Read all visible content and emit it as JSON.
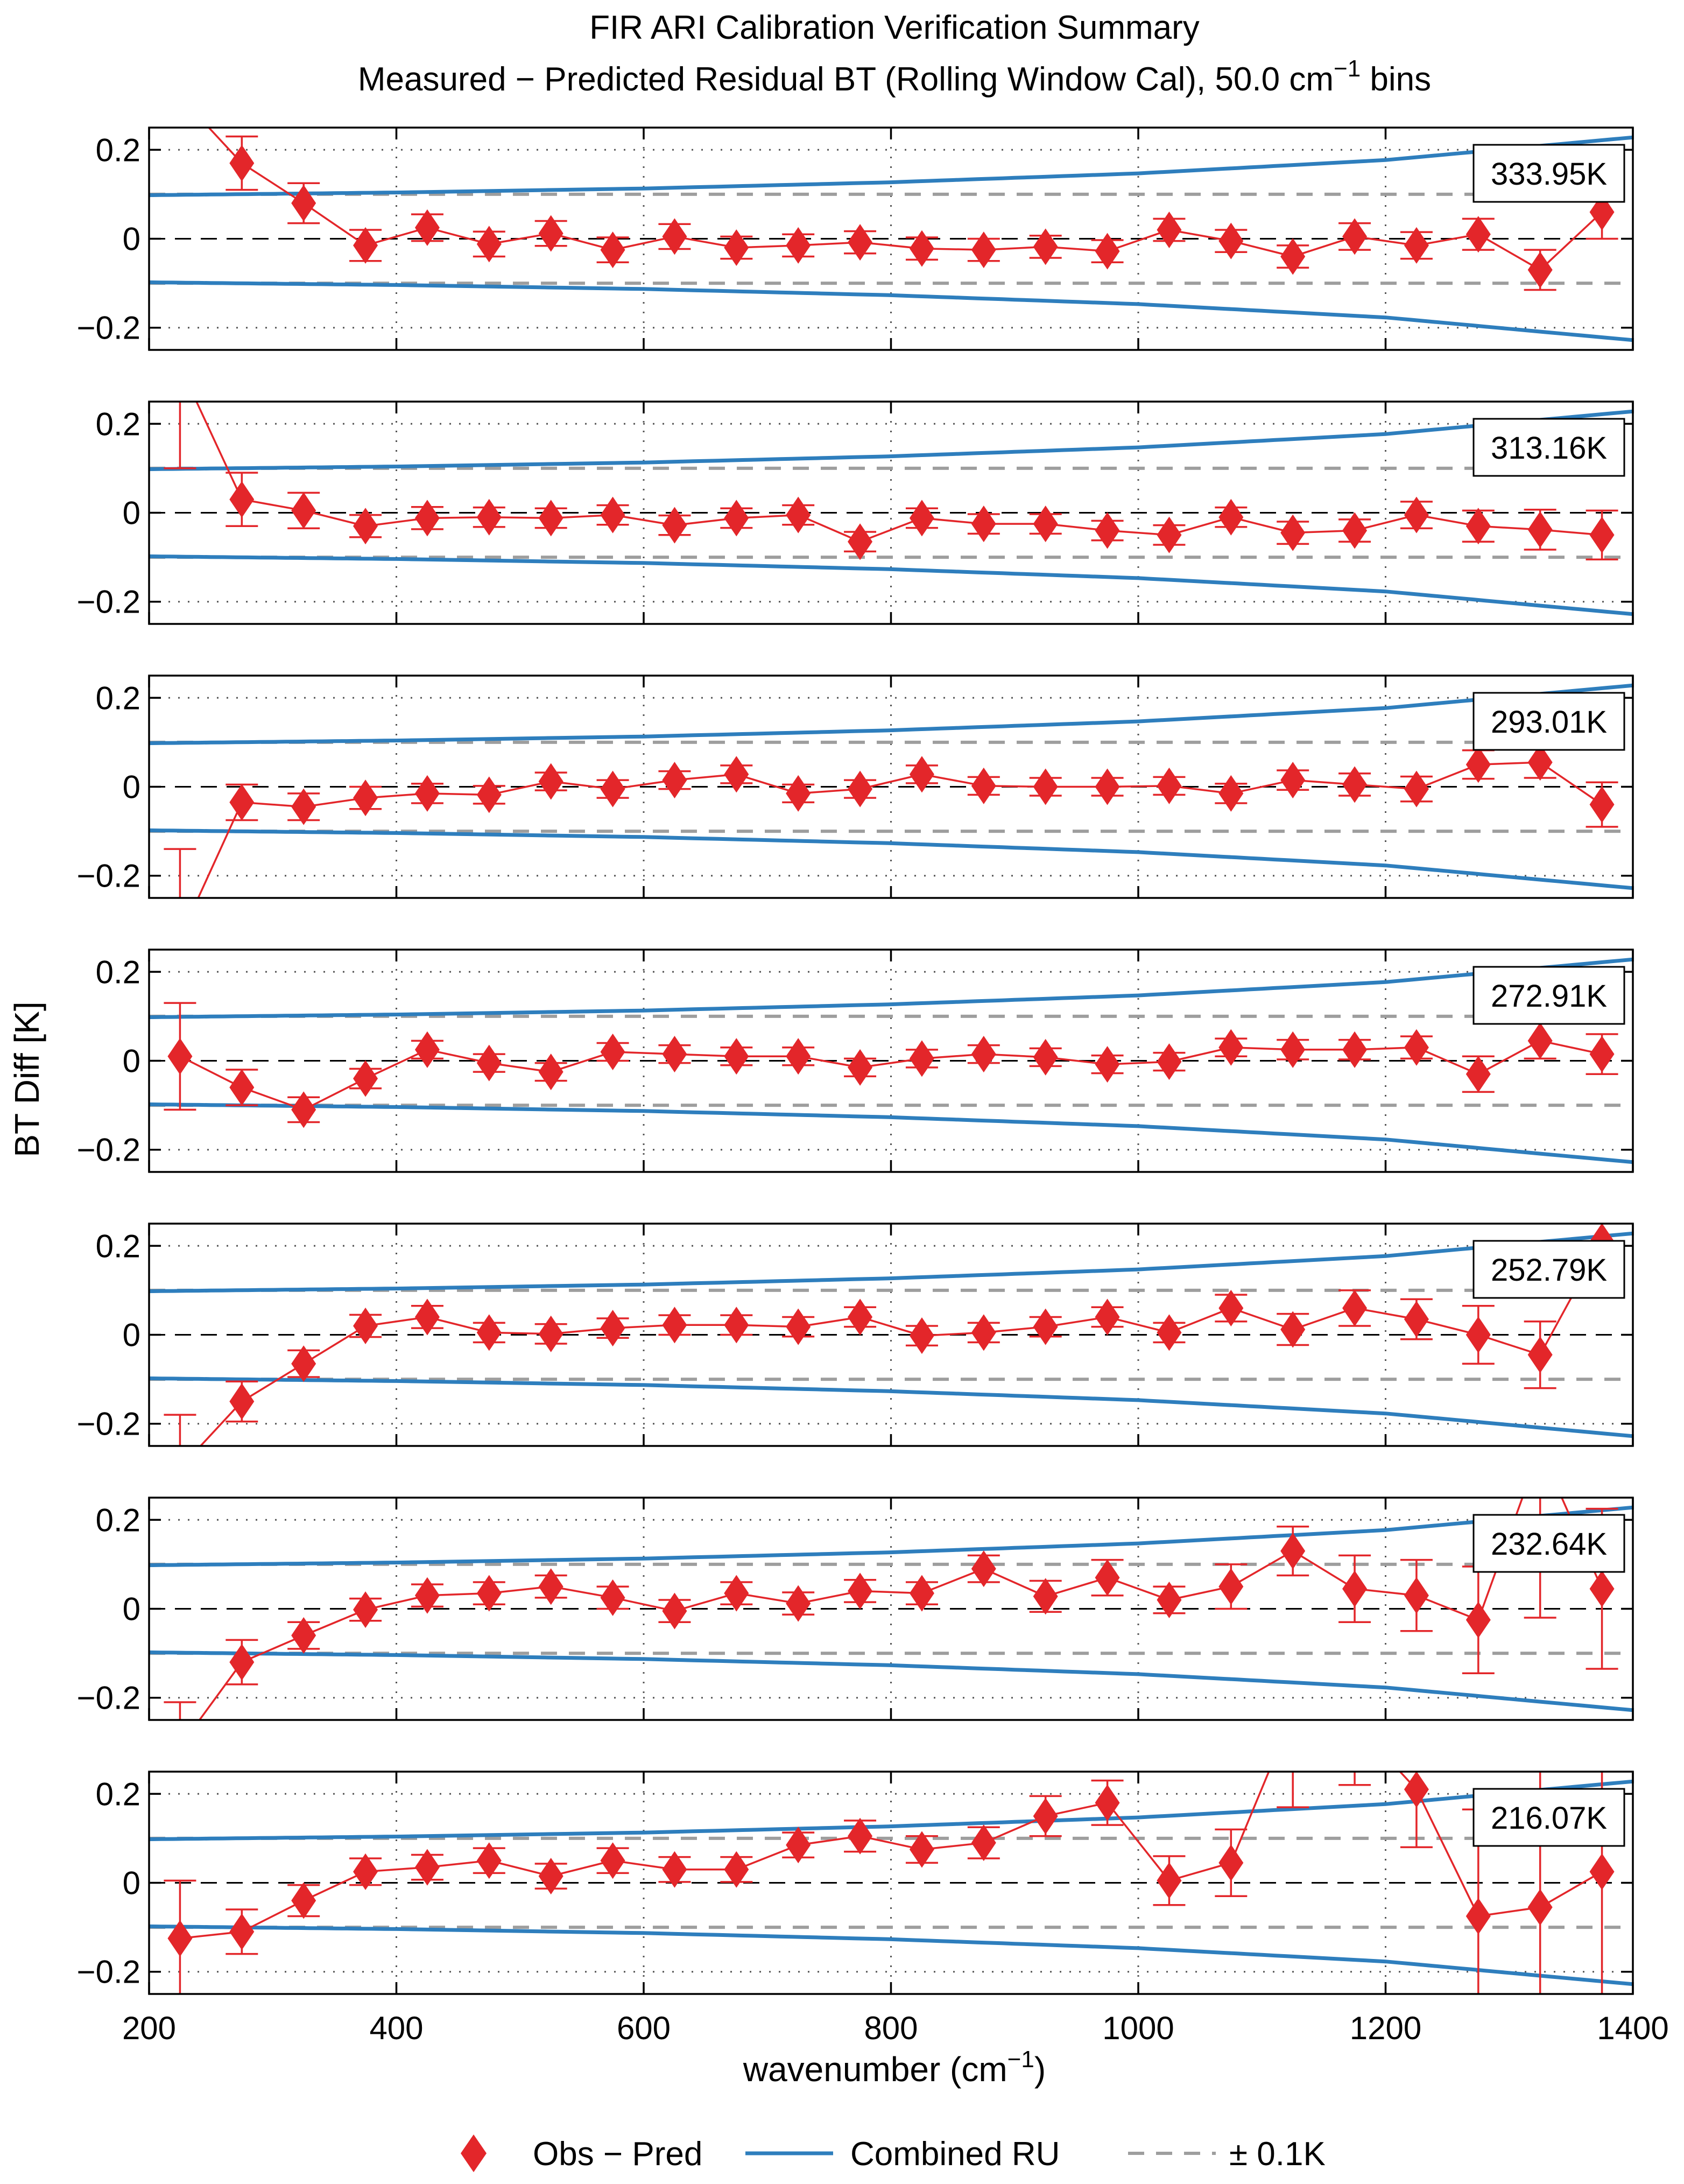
{
  "chart_data": {
    "type": "line",
    "title": "FIR ARI Calibration Verification Summary",
    "subtitle_prefix": "Measured − Predicted Residual BT (Rolling Window Cal), 50.0 cm",
    "subtitle_superscript": "−1",
    "subtitle_suffix": " bins",
    "xlabel_prefix": "wavenumber (cm",
    "xlabel_superscript": "−1",
    "xlabel_suffix": ")",
    "ylabel": "BT Diff [K]",
    "xlim": [
      200,
      1400
    ],
    "ylim": [
      -0.25,
      0.25
    ],
    "x_ticks": [
      200,
      400,
      600,
      800,
      1000,
      1200,
      1400
    ],
    "x_tick_labels": [
      "200",
      "400",
      "600",
      "800",
      "1000",
      "1200",
      "1400"
    ],
    "y_ticks": [
      0.2,
      0,
      -0.2
    ],
    "y_tick_labels": [
      "0.2",
      "0",
      "−0.2"
    ],
    "grid": true,
    "legend": [
      {
        "label": "Obs − Pred",
        "symbol": "diamond",
        "color": "#e3262a"
      },
      {
        "label": "Combined RU",
        "symbol": "line",
        "color": "#2e7ebd"
      },
      {
        "label": "± 0.1K",
        "symbol": "dashed-line",
        "color": "#9e9e9e"
      }
    ],
    "colors": {
      "obs": "#e3262a",
      "ru": "#2e7ebd",
      "threshold": "#9e9e9e",
      "zero": "#000000",
      "grid": "#555555"
    },
    "ru_curve": {
      "x": [
        200,
        400,
        600,
        800,
        1000,
        1200,
        1400
      ],
      "y": [
        0.098,
        0.104,
        0.113,
        0.127,
        0.147,
        0.177,
        0.228
      ]
    },
    "threshold": 0.1,
    "wavenumbers": [
      225,
      275,
      325,
      375,
      425,
      475,
      525,
      575,
      625,
      675,
      725,
      775,
      825,
      875,
      925,
      975,
      1025,
      1075,
      1125,
      1175,
      1225,
      1275,
      1325,
      1375
    ],
    "panels": [
      {
        "temperature": "333.95K",
        "values": [
          0.32,
          0.17,
          0.08,
          -0.015,
          0.025,
          -0.012,
          0.012,
          -0.025,
          0.005,
          -0.02,
          -0.015,
          -0.008,
          -0.022,
          -0.025,
          -0.018,
          -0.028,
          0.02,
          -0.005,
          -0.04,
          0.005,
          -0.015,
          0.01,
          -0.07,
          0.06
        ],
        "errors": [
          0.06,
          0.06,
          0.045,
          0.035,
          0.03,
          0.028,
          0.028,
          0.028,
          0.028,
          0.025,
          0.025,
          0.025,
          0.025,
          0.025,
          0.025,
          0.025,
          0.025,
          0.025,
          0.025,
          0.03,
          0.03,
          0.035,
          0.045,
          0.06
        ]
      },
      {
        "temperature": "313.16K",
        "values": [
          0.33,
          0.03,
          0.005,
          -0.03,
          -0.012,
          -0.01,
          -0.012,
          -0.005,
          -0.028,
          -0.012,
          -0.005,
          -0.065,
          -0.012,
          -0.025,
          -0.025,
          -0.04,
          -0.05,
          -0.01,
          -0.045,
          -0.04,
          -0.005,
          -0.03,
          -0.038,
          -0.05
        ],
        "errors": [
          0.23,
          0.06,
          0.04,
          0.025,
          0.025,
          0.022,
          0.022,
          0.022,
          0.022,
          0.022,
          0.022,
          0.022,
          0.022,
          0.022,
          0.022,
          0.022,
          0.022,
          0.022,
          0.025,
          0.025,
          0.03,
          0.035,
          0.045,
          0.055
        ]
      },
      {
        "temperature": "293.01K",
        "values": [
          -0.34,
          -0.035,
          -0.045,
          -0.025,
          -0.015,
          -0.018,
          0.012,
          -0.005,
          0.015,
          0.028,
          -0.015,
          -0.005,
          0.028,
          0.002,
          0.0,
          0.0,
          0.002,
          -0.015,
          0.015,
          0.005,
          -0.005,
          0.05,
          0.055,
          -0.04
        ],
        "errors": [
          0.2,
          0.04,
          0.03,
          0.025,
          0.022,
          0.02,
          0.02,
          0.02,
          0.02,
          0.02,
          0.02,
          0.02,
          0.02,
          0.02,
          0.02,
          0.02,
          0.02,
          0.022,
          0.022,
          0.025,
          0.028,
          0.032,
          0.035,
          0.05
        ]
      },
      {
        "temperature": "272.91K",
        "values": [
          0.01,
          -0.06,
          -0.11,
          -0.04,
          0.025,
          -0.005,
          -0.025,
          0.02,
          0.015,
          0.01,
          0.01,
          -0.015,
          0.005,
          0.015,
          0.008,
          -0.008,
          -0.002,
          0.03,
          0.025,
          0.025,
          0.03,
          -0.03,
          0.045,
          0.015
        ],
        "errors": [
          0.12,
          0.04,
          0.028,
          0.022,
          0.02,
          0.02,
          0.02,
          0.02,
          0.02,
          0.02,
          0.02,
          0.02,
          0.02,
          0.02,
          0.02,
          0.02,
          0.02,
          0.02,
          0.022,
          0.022,
          0.025,
          0.04,
          0.04,
          0.045
        ]
      },
      {
        "temperature": "252.79K",
        "values": [
          -0.3,
          -0.15,
          -0.065,
          0.02,
          0.04,
          0.005,
          0.002,
          0.015,
          0.022,
          0.022,
          0.018,
          0.04,
          -0.002,
          0.005,
          0.018,
          0.04,
          0.005,
          0.06,
          0.012,
          0.06,
          0.035,
          0.0,
          -0.045,
          0.21
        ],
        "errors": [
          0.12,
          0.045,
          0.03,
          0.025,
          0.025,
          0.022,
          0.022,
          0.022,
          0.022,
          0.022,
          0.022,
          0.022,
          0.022,
          0.022,
          0.022,
          0.022,
          0.022,
          0.03,
          0.035,
          0.04,
          0.045,
          0.065,
          0.075,
          0.08
        ]
      },
      {
        "temperature": "232.64K",
        "values": [
          -0.31,
          -0.12,
          -0.06,
          -0.002,
          0.03,
          0.035,
          0.05,
          0.025,
          -0.005,
          0.035,
          0.012,
          0.04,
          0.035,
          0.09,
          0.028,
          0.07,
          0.02,
          0.05,
          0.13,
          0.045,
          0.03,
          -0.025,
          0.36,
          0.045
        ],
        "errors": [
          0.1,
          0.05,
          0.03,
          0.025,
          0.025,
          0.025,
          0.025,
          0.025,
          0.025,
          0.025,
          0.025,
          0.025,
          0.025,
          0.03,
          0.035,
          0.04,
          0.03,
          0.05,
          0.055,
          0.075,
          0.08,
          0.12,
          0.38,
          0.18
        ]
      },
      {
        "temperature": "216.07K",
        "values": [
          -0.125,
          -0.11,
          -0.04,
          0.025,
          0.035,
          0.05,
          0.015,
          0.05,
          0.03,
          0.03,
          0.085,
          0.105,
          0.075,
          0.09,
          0.15,
          0.18,
          0.005,
          0.045,
          0.38,
          0.36,
          0.21,
          -0.075,
          -0.055,
          0.025
        ],
        "errors": [
          0.13,
          0.05,
          0.035,
          0.03,
          0.028,
          0.028,
          0.028,
          0.028,
          0.028,
          0.028,
          0.028,
          0.035,
          0.03,
          0.035,
          0.045,
          0.05,
          0.055,
          0.075,
          0.21,
          0.14,
          0.13,
          0.24,
          0.33,
          0.3
        ]
      }
    ]
  }
}
